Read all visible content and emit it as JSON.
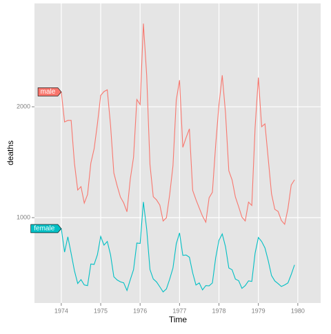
{
  "chart_data": {
    "type": "line",
    "x_label": "Time",
    "y_label": "deaths",
    "x": [
      1974,
      1974.0833,
      1974.1667,
      1974.25,
      1974.3333,
      1974.4167,
      1974.5,
      1974.5833,
      1974.6667,
      1974.75,
      1974.8333,
      1974.9167,
      1975,
      1975.0833,
      1975.1667,
      1975.25,
      1975.3333,
      1975.4167,
      1975.5,
      1975.5833,
      1975.6667,
      1975.75,
      1975.8333,
      1975.9167,
      1976,
      1976.0833,
      1976.1667,
      1976.25,
      1976.3333,
      1976.4167,
      1976.5,
      1976.5833,
      1976.6667,
      1976.75,
      1976.8333,
      1976.9167,
      1977,
      1977.0833,
      1977.1667,
      1977.25,
      1977.3333,
      1977.4167,
      1977.5,
      1977.5833,
      1977.6667,
      1977.75,
      1977.8333,
      1977.9167,
      1978,
      1978.0833,
      1978.1667,
      1978.25,
      1978.3333,
      1978.4167,
      1978.5,
      1978.5833,
      1978.6667,
      1978.75,
      1978.8333,
      1978.9167,
      1979,
      1979.0833,
      1979.1667,
      1979.25,
      1979.3333,
      1979.4167,
      1979.5,
      1979.5833,
      1979.6667,
      1979.75,
      1979.8333,
      1979.9167
    ],
    "series": [
      {
        "name": "male",
        "color": "#F8766D",
        "values": [
          2134,
          1863,
          1877,
          1877,
          1492,
          1249,
          1280,
          1131,
          1209,
          1492,
          1621,
          1846,
          2103,
          2137,
          2153,
          1833,
          1403,
          1288,
          1186,
          1133,
          1053,
          1347,
          1545,
          2066,
          2020,
          2750,
          2283,
          1479,
          1189,
          1160,
          1113,
          970,
          999,
          1208,
          1467,
          2059,
          2240,
          1634,
          1722,
          1801,
          1246,
          1162,
          1087,
          1013,
          959,
          1179,
          1229,
          1655,
          2019,
          2284,
          1942,
          1423,
          1340,
          1187,
          1098,
          1004,
          970,
          1140,
          1110,
          1812,
          2263,
          1820,
          1846,
          1531,
          1215,
          1075,
          1056,
          975,
          940,
          1081,
          1294,
          1341
        ]
      },
      {
        "name": "female",
        "color": "#00BFC4",
        "values": [
          901,
          689,
          827,
          677,
          522,
          406,
          441,
          393,
          387,
          582,
          578,
          666,
          830,
          752,
          785,
          664,
          467,
          438,
          421,
          412,
          343,
          440,
          531,
          771,
          767,
          1141,
          896,
          532,
          447,
          420,
          376,
          330,
          357,
          445,
          546,
          764,
          862,
          660,
          663,
          643,
          502,
          392,
          411,
          348,
          387,
          385,
          411,
          638,
          796,
          853,
          737,
          546,
          530,
          446,
          431,
          362,
          387,
          430,
          425,
          679,
          821,
          785,
          727,
          612,
          478,
          429,
          405,
          379,
          393,
          411,
          487,
          574
        ]
      }
    ],
    "xlim": [
      1973.32,
      1980.58
    ],
    "xticks": [
      1974,
      1975,
      1976,
      1977,
      1978,
      1979,
      1980
    ],
    "ylim": [
      230,
      2932
    ],
    "yticks": [
      1000,
      2000
    ],
    "grid": true
  }
}
